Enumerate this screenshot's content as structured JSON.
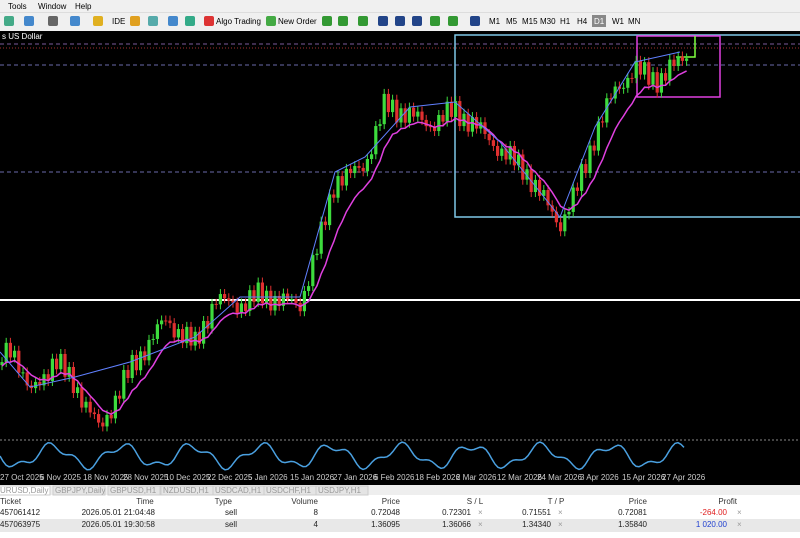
{
  "menu": [
    "Tools",
    "Window",
    "Help"
  ],
  "toolbar": {
    "ide": "IDE",
    "algo_trading": "Algo Trading",
    "new_order": "New Order",
    "timeframes": [
      "M1",
      "M5",
      "M15",
      "M30",
      "H1",
      "H4",
      "D1",
      "W1",
      "MN"
    ]
  },
  "chart": {
    "title": "s US Dollar",
    "dates": [
      "27 Oct 2025",
      "6 Nov 2025",
      "18 Nov 2025",
      "28 Nov 2025",
      "10 Dec 2025",
      "22 Dec 2025",
      "5 Jan 2026",
      "15 Jan 2026",
      "27 Jan 2026",
      "6 Feb 2026",
      "18 Feb 2026",
      "2 Mar 2026",
      "12 Mar 2026",
      "24 Mar 2026",
      "3 Apr 2026",
      "15 Apr 2026",
      "27 Apr 2026"
    ]
  },
  "tabs": [
    "URUSD,Daily",
    "GBPJPY,Daily",
    "GBPUSD,H1",
    "NZDUSD,H1",
    "USDCAD,H1",
    "USDCHF,H1",
    "USDJPY,H1"
  ],
  "trades": {
    "columns": [
      "Ticket",
      "Time",
      "Type",
      "Volume",
      "Price",
      "S / L",
      "T / P",
      "Price",
      "Profit"
    ],
    "rows": [
      [
        "457061412",
        "2026.05.01 21:04:48",
        "sell",
        "8",
        "0.72048",
        "0.72301",
        "0.71551",
        "0.72081",
        "-264.00"
      ],
      [
        "457063975",
        "2026.05.01 19:30:58",
        "sell",
        "4",
        "1.36095",
        "1.36066",
        "1.34340",
        "1.35840",
        "1 020.00"
      ]
    ]
  }
}
